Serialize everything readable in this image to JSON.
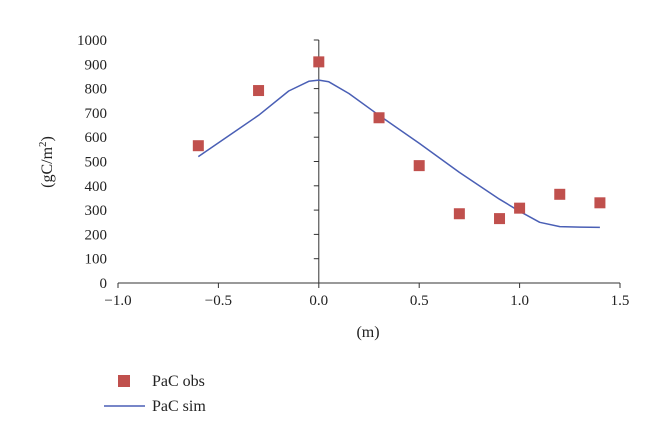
{
  "chart_data": {
    "type": "scatter",
    "title": "",
    "xlabel": "(m)",
    "ylabel_base": "(gC/m",
    "ylabel_sup": "2",
    "ylabel_end": ")",
    "xlim": [
      -1.0,
      1.5
    ],
    "ylim": [
      0,
      1000
    ],
    "xticks": [
      "−1.0",
      "−0.5",
      "0.0",
      "0.5",
      "1.0",
      "1.5"
    ],
    "xtick_values": [
      -1.0,
      -0.5,
      0.0,
      0.5,
      1.0,
      1.5
    ],
    "yticks": [
      "0",
      "100",
      "200",
      "300",
      "400",
      "500",
      "600",
      "700",
      "800",
      "900",
      "1000"
    ],
    "ytick_values": [
      0,
      100,
      200,
      300,
      400,
      500,
      600,
      700,
      800,
      900,
      1000
    ],
    "grid": false,
    "legend_placement": "bottom-left",
    "series": [
      {
        "name": "PaC obs",
        "kind": "markers",
        "color": "#c0504d",
        "points": [
          {
            "x": -0.6,
            "y": 565
          },
          {
            "x": -0.3,
            "y": 792
          },
          {
            "x": 0.0,
            "y": 910
          },
          {
            "x": 0.3,
            "y": 680
          },
          {
            "x": 0.5,
            "y": 483
          },
          {
            "x": 0.7,
            "y": 285
          },
          {
            "x": 0.9,
            "y": 265
          },
          {
            "x": 1.0,
            "y": 308
          },
          {
            "x": 1.2,
            "y": 365
          },
          {
            "x": 1.4,
            "y": 330
          }
        ]
      },
      {
        "name": "PaC sim",
        "kind": "line",
        "color": "#4a5fb5",
        "points": [
          {
            "x": -0.6,
            "y": 520
          },
          {
            "x": -0.45,
            "y": 605
          },
          {
            "x": -0.3,
            "y": 690
          },
          {
            "x": -0.15,
            "y": 790
          },
          {
            "x": -0.05,
            "y": 830
          },
          {
            "x": 0.0,
            "y": 835
          },
          {
            "x": 0.05,
            "y": 828
          },
          {
            "x": 0.15,
            "y": 780
          },
          {
            "x": 0.3,
            "y": 690
          },
          {
            "x": 0.5,
            "y": 575
          },
          {
            "x": 0.7,
            "y": 455
          },
          {
            "x": 0.9,
            "y": 345
          },
          {
            "x": 1.0,
            "y": 295
          },
          {
            "x": 1.1,
            "y": 250
          },
          {
            "x": 1.2,
            "y": 232
          },
          {
            "x": 1.3,
            "y": 230
          },
          {
            "x": 1.4,
            "y": 229
          }
        ]
      }
    ]
  }
}
